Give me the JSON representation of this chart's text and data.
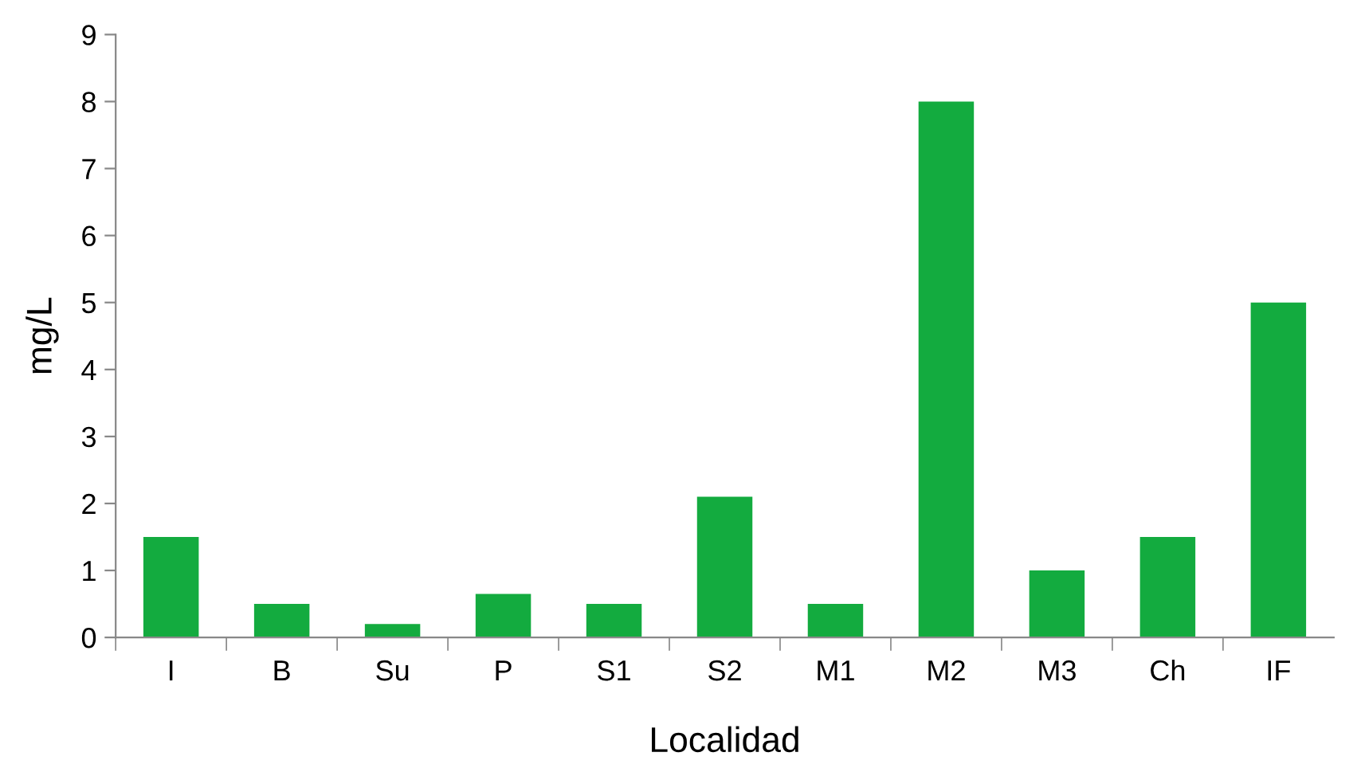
{
  "chart_data": {
    "type": "bar",
    "xlabel": "Localidad",
    "ylabel": "mg/L",
    "categories": [
      "I",
      "B",
      "Su",
      "P",
      "S1",
      "S2",
      "M1",
      "M2",
      "M3",
      "Ch",
      "IF"
    ],
    "values": [
      1.5,
      0.5,
      0.2,
      0.65,
      0.5,
      2.1,
      0.5,
      8.0,
      1.0,
      1.5,
      5.0
    ],
    "color": "#13ab3f",
    "ylim": [
      0,
      9
    ],
    "yticks": [
      0,
      1,
      2,
      3,
      4,
      5,
      6,
      7,
      8,
      9
    ],
    "grid": false,
    "legend": false
  }
}
